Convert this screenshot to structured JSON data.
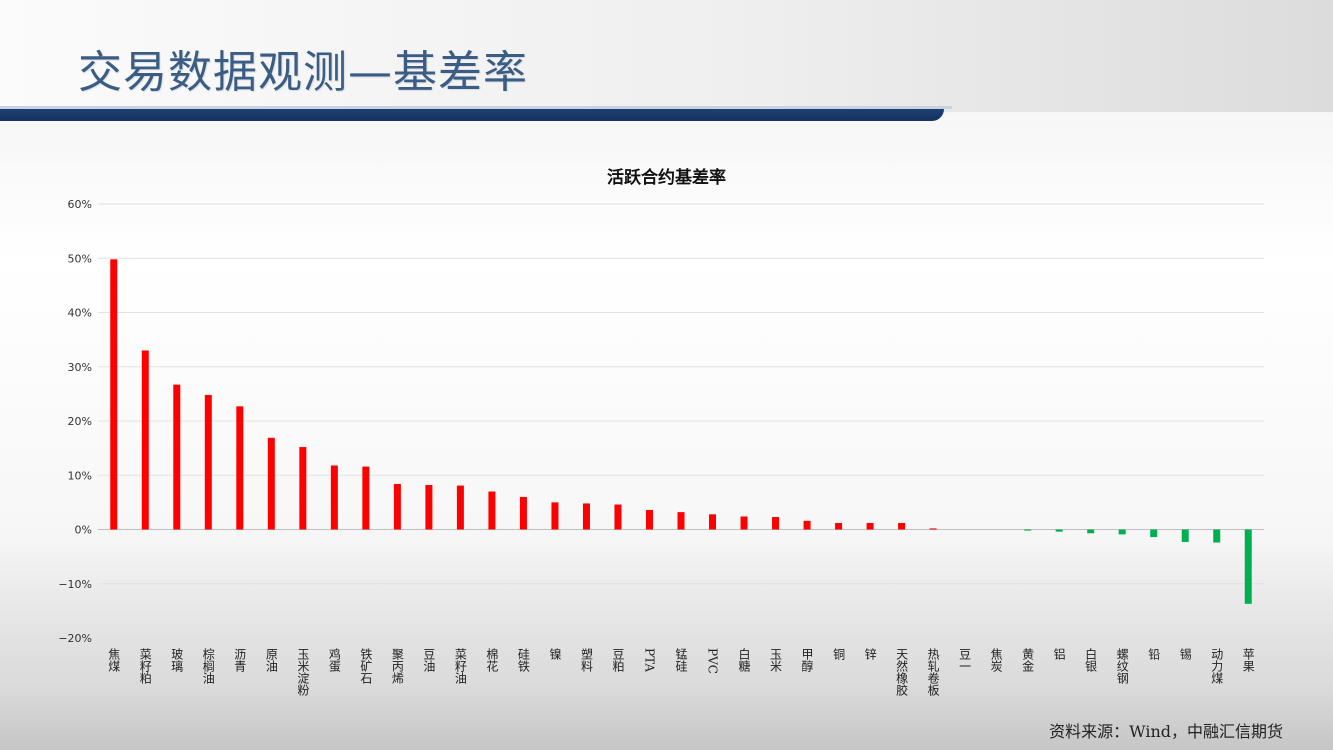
{
  "header": {
    "title": "交易数据观测—基差率"
  },
  "footer": {
    "source": "资料来源：Wind，中融汇信期货"
  },
  "colors": {
    "positive": "#ff0000",
    "negative": "#00b050",
    "title": "#3b5d84",
    "rule": "#1f4072"
  },
  "chart_data": {
    "type": "bar",
    "title": "活跃合约基差率",
    "xlabel": "",
    "ylabel": "",
    "ylim": [
      -20,
      60
    ],
    "yticks": [
      60,
      50,
      40,
      30,
      20,
      10,
      0,
      -10,
      -20
    ],
    "ytick_labels": [
      "60%",
      "50%",
      "40%",
      "30%",
      "20%",
      "10%",
      "0%",
      "−10%",
      "−20%"
    ],
    "grid": true,
    "categories": [
      "焦煤",
      "菜籽粕",
      "玻璃",
      "棕榈油",
      "沥青",
      "原油",
      "玉米淀粉",
      "鸡蛋",
      "铁矿石",
      "聚丙烯",
      "豆油",
      "菜籽油",
      "棉花",
      "硅铁",
      "镍",
      "塑料",
      "豆粕",
      "PTA",
      "锰硅",
      "PVC",
      "白糖",
      "玉米",
      "甲醇",
      "铜",
      "锌",
      "天然橡胶",
      "热轧卷板",
      "豆一",
      "焦炭",
      "黄金",
      "铝",
      "白银",
      "螺纹钢",
      "铅",
      "锡",
      "动力煤",
      "苹果"
    ],
    "values": [
      49.8,
      33.0,
      26.7,
      24.8,
      22.7,
      16.9,
      15.2,
      11.8,
      11.6,
      8.4,
      8.2,
      8.1,
      7.0,
      6.0,
      5.0,
      4.8,
      4.6,
      3.6,
      3.2,
      2.8,
      2.4,
      2.3,
      1.6,
      1.2,
      1.2,
      1.2,
      0.2,
      0.0,
      0.0,
      -0.2,
      -0.4,
      -0.7,
      -0.9,
      -1.4,
      -2.3,
      -2.4,
      -13.7
    ]
  }
}
